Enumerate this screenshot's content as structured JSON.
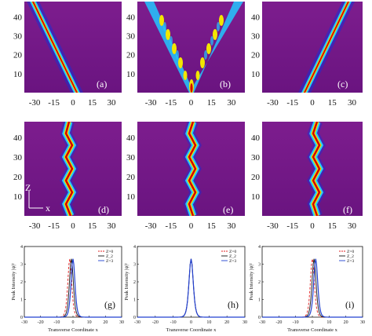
{
  "figure": {
    "colors": {
      "bg_purple": "#7a1a8c",
      "red_beam": "#d20000",
      "yellow": "#f2e600",
      "cyan": "#22c8ff",
      "blue": "#1e2dd2",
      "curve_red": "#e02020",
      "curve_black": "#111111",
      "curve_blue": "#2040d0"
    },
    "top_row": {
      "x_ticks": [
        "-30",
        "-15",
        "0",
        "15",
        "30"
      ],
      "y_ticks": [
        "10",
        "20",
        "30",
        "40"
      ],
      "panels": [
        {
          "label": "(a)",
          "type": "tilted-beam-left"
        },
        {
          "label": "(b)",
          "type": "v-interference"
        },
        {
          "label": "(c)",
          "type": "tilted-beam-right"
        }
      ]
    },
    "middle_row": {
      "x_ticks": [
        "-30",
        "-15",
        "0",
        "15",
        "30"
      ],
      "y_ticks": [
        "10",
        "20",
        "30",
        "40"
      ],
      "axis_z_label": "Z",
      "axis_x_label": "x",
      "panels": [
        {
          "label": "(d)",
          "type": "zigzag-beam"
        },
        {
          "label": "(e)",
          "type": "zigzag-beam"
        },
        {
          "label": "(f)",
          "type": "zigzag-beam"
        }
      ]
    },
    "bottom_row": {
      "x_ticks": [
        "-30",
        "-20",
        "-10",
        "0",
        "10",
        "20",
        "30"
      ],
      "y_ticks": [
        "0",
        "1",
        "2",
        "3",
        "4"
      ],
      "ylabel": "Peak Intensity |ψ|²",
      "xlabel": "Transverse Coordinate x",
      "panels": [
        {
          "label": "(g)",
          "legend": [
            "Z=0",
            "Z_2",
            "Z=3"
          ],
          "peak_offsets": [
            -2,
            -1,
            0
          ]
        },
        {
          "label": "(h)",
          "legend": [
            "Z=0",
            "Z_2",
            "Z=3"
          ],
          "peak_offsets": [
            0,
            0,
            0
          ]
        },
        {
          "label": "(i)",
          "legend": [
            "Z=0",
            "Z_2",
            "Z=3"
          ],
          "peak_offsets": [
            0,
            1,
            2
          ]
        }
      ]
    }
  }
}
